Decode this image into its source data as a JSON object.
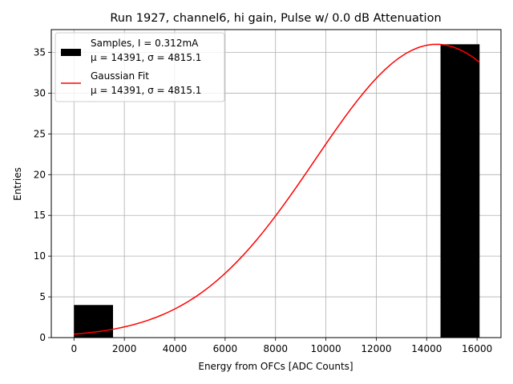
{
  "chart_data": {
    "type": "bar",
    "title": "Run 1927, channel6, hi gain, Pulse w/ 0.0 dB Attenuation",
    "xlabel": "Energy from OFCs [ADC Counts]",
    "ylabel": "Entries",
    "xlim": [
      -900,
      16950
    ],
    "ylim": [
      0,
      37.8
    ],
    "grid": true,
    "legend_position": "upper-left",
    "xticks": [
      0,
      2000,
      4000,
      6000,
      8000,
      10000,
      12000,
      14000,
      16000
    ],
    "xtick_labels": [
      "0",
      "2000",
      "4000",
      "6000",
      "8000",
      "10000",
      "12000",
      "14000",
      "16000"
    ],
    "yticks": [
      0,
      5,
      10,
      15,
      20,
      25,
      30,
      35
    ],
    "ytick_labels": [
      "0",
      "5",
      "10",
      "15",
      "20",
      "25",
      "30",
      "35"
    ],
    "histogram": {
      "name": "Samples, I = 0.312mA",
      "stats": "μ = 14391, σ = 4815.1",
      "color": "#000000",
      "bins": [
        {
          "x0": 0,
          "x1": 1550,
          "count": 4
        },
        {
          "x0": 14550,
          "x1": 16100,
          "count": 36
        }
      ]
    },
    "fit": {
      "name": "Gaussian Fit",
      "stats": "μ = 14391, σ = 4815.1",
      "color": "#ff0000",
      "amplitude": 36,
      "mu": 14391,
      "sigma": 4815.1,
      "x_range": [
        0,
        16100
      ]
    }
  }
}
